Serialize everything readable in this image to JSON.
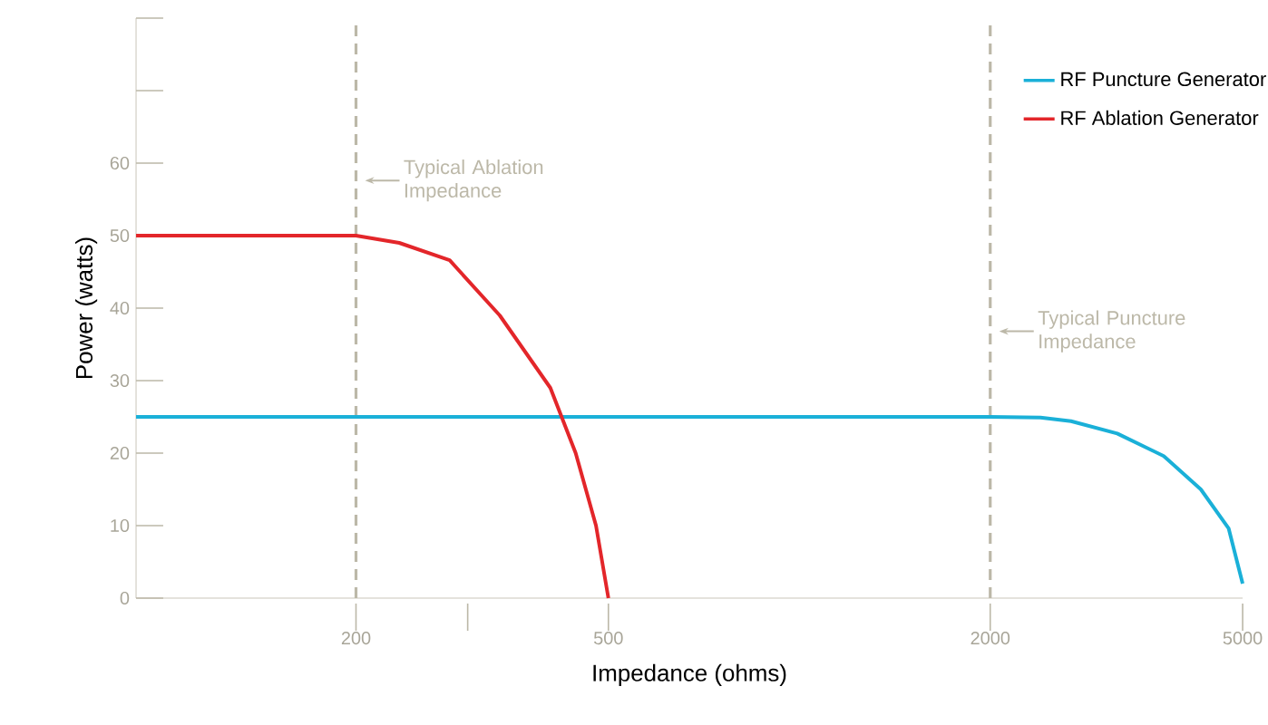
{
  "chart_data": {
    "type": "line",
    "xlabel": "Impedance (ohms)",
    "ylabel": "Power (watts)",
    "log": "x",
    "xlim": [
      90,
      5000
    ],
    "ylim": [
      0,
      80
    ],
    "xticks": [
      200,
      {
        "value": 300,
        "label": null
      },
      500,
      2000,
      5000
    ],
    "yticks": [
      0,
      10,
      20,
      30,
      40,
      50,
      60,
      {
        "value": 70,
        "label": null
      },
      {
        "value": 80,
        "label": null
      }
    ],
    "series": [
      {
        "name": "RF Puncture Generator",
        "color": "#1ab0d8",
        "x": [
          90,
          2000,
          2400,
          2682,
          3172,
          3755,
          4296,
          4753,
          5000
        ],
        "values": [
          25,
          25,
          24.9,
          24.4,
          22.7,
          19.6,
          15,
          9.6,
          2
        ]
      },
      {
        "name": "RF Ablation Generator",
        "color": "#e3262a",
        "x": [
          90,
          200,
          234,
          281,
          337,
          405,
          444,
          478,
          500
        ],
        "values": [
          50,
          50,
          49,
          46.6,
          39,
          29,
          20,
          10,
          0
        ]
      }
    ],
    "ref_lines": [
      {
        "axis": "x",
        "value": 200,
        "label": "Typical Ablation Impedance",
        "color": "#bcb8a8",
        "line_style": "dashed"
      },
      {
        "axis": "x",
        "value": 2000,
        "label": "Typical Puncture Impedance",
        "color": "#bcb8a8",
        "line_style": "dashed"
      }
    ],
    "legend": "top right",
    "grid": false,
    "marker": "none",
    "line_style": "solid"
  }
}
